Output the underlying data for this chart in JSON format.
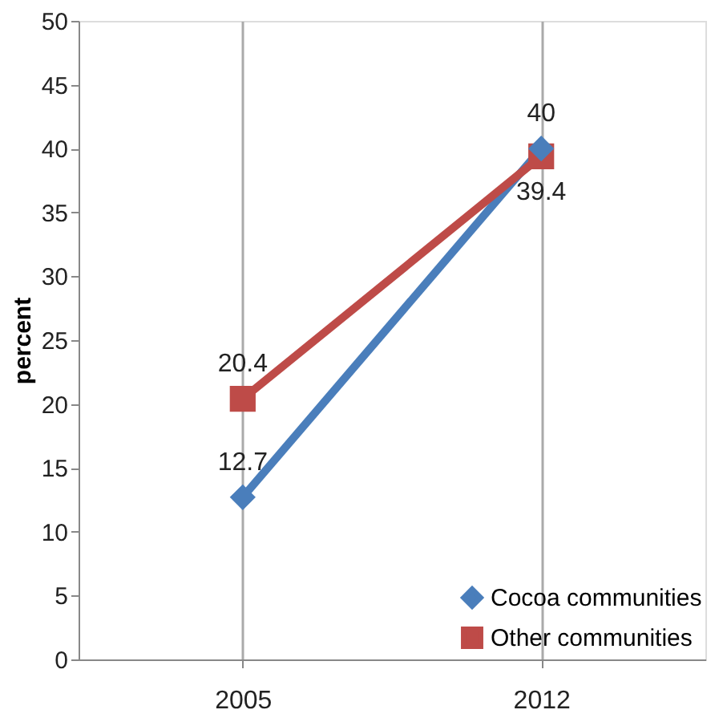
{
  "chart_data": {
    "type": "line",
    "ylabel": "percent",
    "categories": [
      "2005",
      "2012"
    ],
    "series": [
      {
        "name": "Cocoa communities",
        "color": "#4a7ebb",
        "values": [
          12.7,
          40
        ],
        "marker": "diamond"
      },
      {
        "name": "Other communities",
        "color": "#be4b48",
        "values": [
          20.4,
          39.4
        ],
        "marker": "square"
      }
    ],
    "ylim": [
      0,
      50
    ],
    "yticks": [
      0,
      5,
      10,
      15,
      20,
      25,
      30,
      35,
      40,
      45,
      50
    ],
    "grid": "x",
    "legend": "bottom right",
    "data_labels": true,
    "line_style": "solid"
  }
}
